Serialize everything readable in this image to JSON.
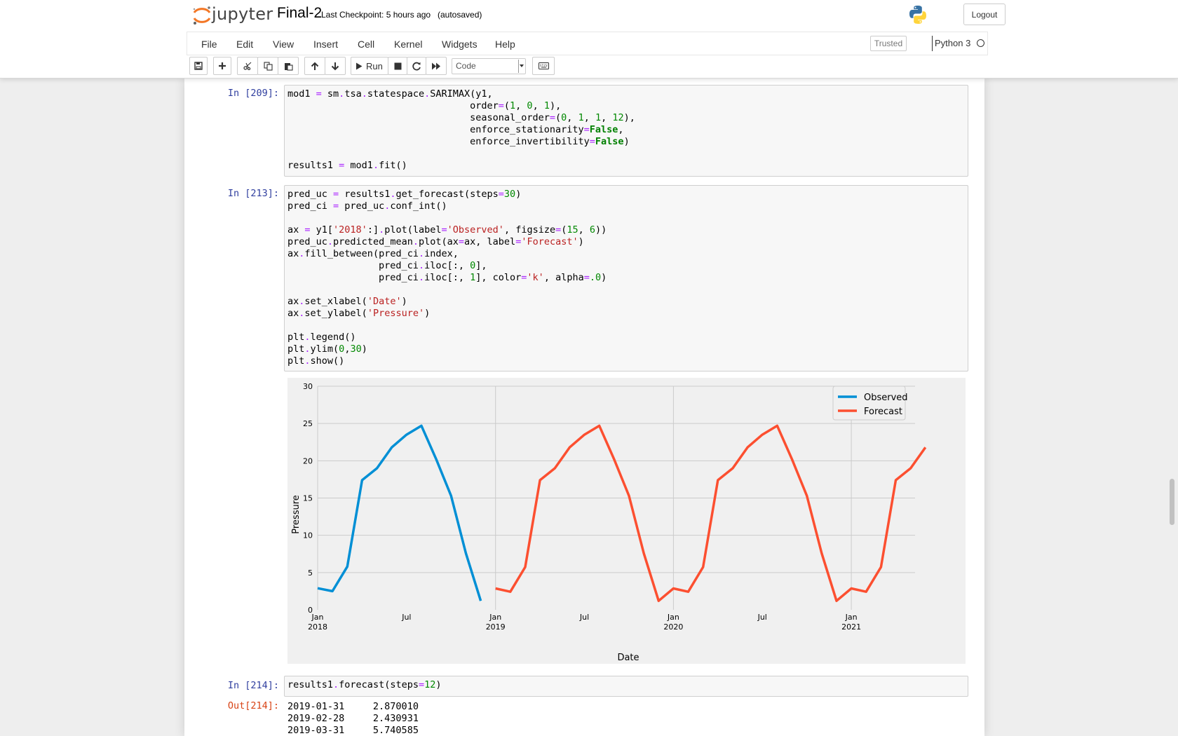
{
  "header": {
    "logo_text": "jupyter",
    "notebook_name": "Final-2",
    "checkpoint": "Last Checkpoint: 5 hours ago",
    "autosaved": "(autosaved)",
    "logout_label": "Logout"
  },
  "menubar": {
    "items": [
      "File",
      "Edit",
      "View",
      "Insert",
      "Cell",
      "Kernel",
      "Widgets",
      "Help"
    ],
    "trusted": "Trusted",
    "kernel": "Python 3"
  },
  "toolbar": {
    "run_label": "Run",
    "cell_type": "Code",
    "icons": [
      "save-icon",
      "plus-icon",
      "scissors-icon",
      "copy-icon",
      "paste-icon",
      "arrow-up-icon",
      "arrow-down-icon",
      "play-icon",
      "stop-icon",
      "refresh-icon",
      "fast-forward-icon",
      "keyboard-icon"
    ]
  },
  "cells": {
    "c209": {
      "prompt": "In [209]:"
    },
    "c213": {
      "prompt": "In [213]:"
    },
    "c214": {
      "prompt": "In [214]:",
      "out_prompt": "Out[214]:",
      "output_rows": [
        {
          "date": "2019-01-31",
          "value": "2.870010"
        },
        {
          "date": "2019-02-28",
          "value": "2.430931"
        },
        {
          "date": "2019-03-31",
          "value": "5.740585"
        }
      ]
    }
  },
  "chart_data": {
    "type": "line",
    "xlabel": "Date",
    "ylabel": "Pressure",
    "ylim": [
      0,
      30
    ],
    "yticks": [
      0,
      5,
      10,
      15,
      20,
      25,
      30
    ],
    "xlim": [
      "2018-01",
      "2021-04"
    ],
    "xticks": [
      {
        "x": "2018-01",
        "label": "Jan",
        "year": "2018"
      },
      {
        "x": "2018-07",
        "label": "Jul",
        "year": ""
      },
      {
        "x": "2019-01",
        "label": "Jan",
        "year": "2019"
      },
      {
        "x": "2019-07",
        "label": "Jul",
        "year": ""
      },
      {
        "x": "2020-01",
        "label": "Jan",
        "year": "2020"
      },
      {
        "x": "2020-07",
        "label": "Jul",
        "year": ""
      },
      {
        "x": "2021-01",
        "label": "Jan",
        "year": "2021"
      }
    ],
    "grid": true,
    "legend_position": "top-right",
    "series": [
      {
        "name": "Observed",
        "color": "#008fd5",
        "x": [
          "2018-01",
          "2018-02",
          "2018-03",
          "2018-04",
          "2018-05",
          "2018-06",
          "2018-07",
          "2018-08",
          "2018-09",
          "2018-10",
          "2018-11",
          "2018-12"
        ],
        "values": [
          2.9,
          2.5,
          5.8,
          17.4,
          19.0,
          21.8,
          23.5,
          24.7,
          20.2,
          15.3,
          7.6,
          1.2
        ]
      },
      {
        "name": "Forecast",
        "color": "#fc4f30",
        "x": [
          "2019-01",
          "2019-02",
          "2019-03",
          "2019-04",
          "2019-05",
          "2019-06",
          "2019-07",
          "2019-08",
          "2019-09",
          "2019-10",
          "2019-11",
          "2019-12",
          "2020-01",
          "2020-02",
          "2020-03",
          "2020-04",
          "2020-05",
          "2020-06",
          "2020-07",
          "2020-08",
          "2020-09",
          "2020-10",
          "2020-11",
          "2020-12",
          "2021-01",
          "2021-02",
          "2021-03",
          "2021-04",
          "2021-05",
          "2021-06"
        ],
        "values": [
          2.87,
          2.43,
          5.74,
          17.4,
          19.0,
          21.8,
          23.5,
          24.7,
          20.2,
          15.3,
          7.6,
          1.2,
          2.87,
          2.43,
          5.74,
          17.4,
          19.0,
          21.8,
          23.5,
          24.7,
          20.2,
          15.3,
          7.6,
          1.2,
          2.87,
          2.43,
          5.74,
          17.4,
          19.0,
          21.8
        ]
      }
    ]
  }
}
